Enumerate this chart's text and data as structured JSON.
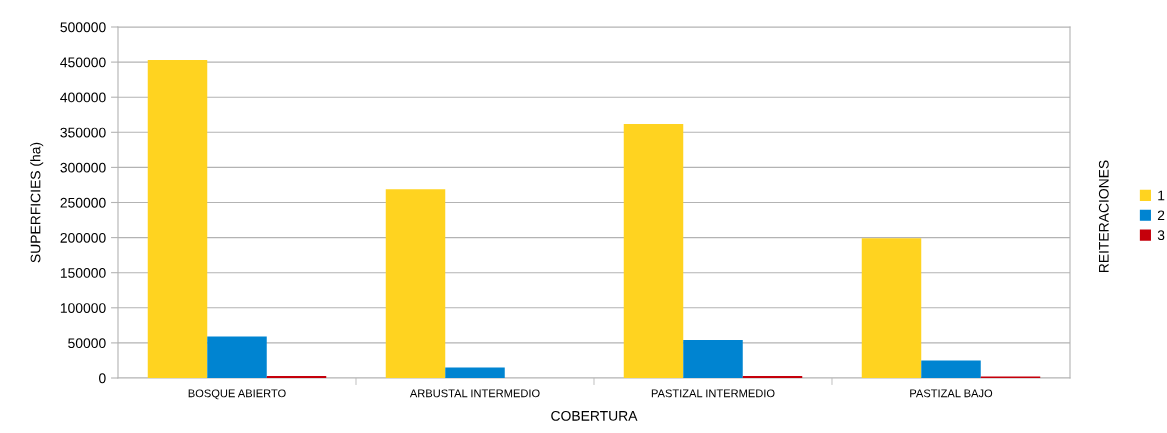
{
  "chart_data": {
    "type": "bar",
    "xlabel": "COBERTURA",
    "ylabel": "SUPERFICIES (ha)",
    "legend_title": "REITERACIONES",
    "categories": [
      "BOSQUE ABIERTO",
      "ARBUSTAL INTERMEDIO",
      "PASTIZAL INTERMEDIO",
      "PASTIZAL BAJO"
    ],
    "series": [
      {
        "name": "1",
        "color": "#ffd320",
        "values": [
          453000,
          269000,
          362000,
          199000
        ]
      },
      {
        "name": "2",
        "color": "#0084d1",
        "values": [
          59000,
          15000,
          54000,
          25000
        ]
      },
      {
        "name": "3",
        "color": "#c5000b",
        "values": [
          3000,
          null,
          3000,
          2000
        ]
      }
    ],
    "ylim": [
      0,
      500000
    ],
    "yticks": [
      0,
      50000,
      100000,
      150000,
      200000,
      250000,
      300000,
      350000,
      400000,
      450000,
      500000
    ],
    "grid": "y",
    "legend": "right"
  }
}
